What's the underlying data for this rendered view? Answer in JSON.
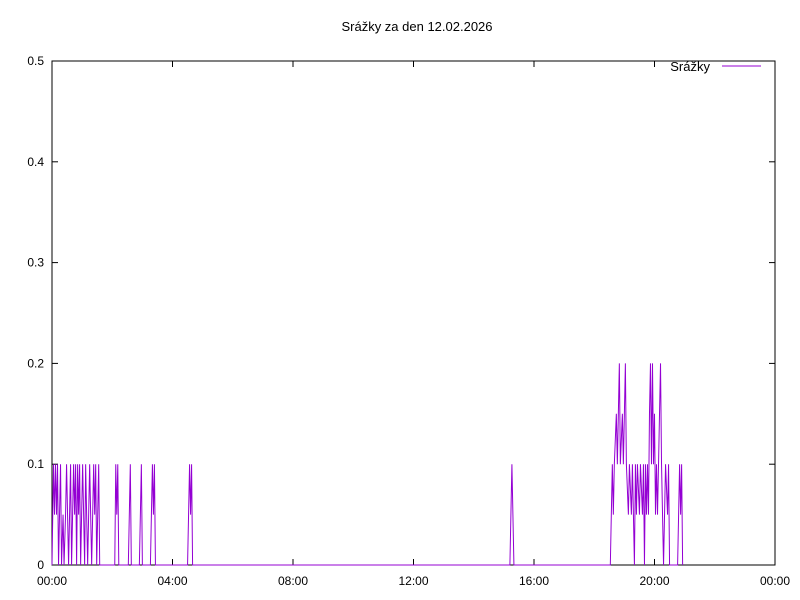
{
  "chart_data": {
    "type": "line",
    "title": "Srážky za den 12.02.2026",
    "xlabel": "",
    "ylabel": "",
    "xlim": [
      "00:00",
      "24:00"
    ],
    "ylim": [
      0,
      0.5
    ],
    "x_tick_labels": [
      "00:00",
      "04:00",
      "08:00",
      "12:00",
      "16:00",
      "20:00",
      "00:00"
    ],
    "y_tick_labels": [
      "0",
      "0.1",
      "0.2",
      "0.3",
      "0.4",
      "0.5"
    ],
    "legend_position": "top-right",
    "grid": false,
    "series": [
      {
        "name": "Srážky",
        "color": "#9400d3",
        "points": [
          [
            "00:00",
            0
          ],
          [
            "00:03",
            0.1
          ],
          [
            "00:05",
            0.05
          ],
          [
            "00:07",
            0.1
          ],
          [
            "00:09",
            0.05
          ],
          [
            "00:11",
            0.1
          ],
          [
            "00:13",
            0
          ],
          [
            "00:15",
            0.05
          ],
          [
            "00:17",
            0.1
          ],
          [
            "00:19",
            0
          ],
          [
            "00:22",
            0.05
          ],
          [
            "00:24",
            0
          ],
          [
            "00:27",
            0.05
          ],
          [
            "00:29",
            0.1
          ],
          [
            "00:31",
            0.05
          ],
          [
            "00:33",
            0
          ],
          [
            "00:35",
            0.05
          ],
          [
            "00:37",
            0.1
          ],
          [
            "00:39",
            0
          ],
          [
            "00:41",
            0.05
          ],
          [
            "00:43",
            0.1
          ],
          [
            "00:45",
            0.05
          ],
          [
            "00:47",
            0.1
          ],
          [
            "00:49",
            0
          ],
          [
            "00:51",
            0.1
          ],
          [
            "00:53",
            0.05
          ],
          [
            "00:55",
            0.1
          ],
          [
            "00:57",
            0
          ],
          [
            "00:59",
            0.05
          ],
          [
            "01:01",
            0.1
          ],
          [
            "01:03",
            0.05
          ],
          [
            "01:05",
            0
          ],
          [
            "01:07",
            0.1
          ],
          [
            "01:09",
            0.05
          ],
          [
            "01:11",
            0
          ],
          [
            "01:13",
            0.05
          ],
          [
            "01:15",
            0.1
          ],
          [
            "01:17",
            0.05
          ],
          [
            "01:19",
            0
          ],
          [
            "01:21",
            0.05
          ],
          [
            "01:23",
            0.1
          ],
          [
            "01:25",
            0.05
          ],
          [
            "01:27",
            0.1
          ],
          [
            "01:29",
            0
          ],
          [
            "01:31",
            0.05
          ],
          [
            "01:33",
            0.1
          ],
          [
            "01:35",
            0
          ],
          [
            "02:05",
            0
          ],
          [
            "02:07",
            0.1
          ],
          [
            "02:09",
            0.05
          ],
          [
            "02:11",
            0.1
          ],
          [
            "02:13",
            0
          ],
          [
            "02:32",
            0
          ],
          [
            "02:34",
            0.05
          ],
          [
            "02:36",
            0.1
          ],
          [
            "02:38",
            0
          ],
          [
            "02:54",
            0
          ],
          [
            "02:56",
            0.05
          ],
          [
            "02:58",
            0.1
          ],
          [
            "03:00",
            0
          ],
          [
            "03:16",
            0
          ],
          [
            "03:18",
            0.05
          ],
          [
            "03:20",
            0.1
          ],
          [
            "03:22",
            0.05
          ],
          [
            "03:24",
            0.1
          ],
          [
            "03:26",
            0
          ],
          [
            "04:30",
            0
          ],
          [
            "04:32",
            0.05
          ],
          [
            "04:34",
            0.1
          ],
          [
            "04:36",
            0.05
          ],
          [
            "04:38",
            0.1
          ],
          [
            "04:40",
            0
          ],
          [
            "15:12",
            0
          ],
          [
            "15:14",
            0.05
          ],
          [
            "15:16",
            0.1
          ],
          [
            "15:18",
            0.05
          ],
          [
            "15:20",
            0
          ],
          [
            "18:32",
            0
          ],
          [
            "18:34",
            0.05
          ],
          [
            "18:36",
            0.1
          ],
          [
            "18:38",
            0.05
          ],
          [
            "18:40",
            0.1
          ],
          [
            "18:44",
            0.15
          ],
          [
            "18:46",
            0.1
          ],
          [
            "18:48",
            0.15
          ],
          [
            "18:50",
            0.2
          ],
          [
            "18:52",
            0.1
          ],
          [
            "18:56",
            0.15
          ],
          [
            "18:58",
            0.1
          ],
          [
            "19:00",
            0.15
          ],
          [
            "19:02",
            0.2
          ],
          [
            "19:04",
            0.1
          ],
          [
            "19:08",
            0.05
          ],
          [
            "19:10",
            0.1
          ],
          [
            "19:14",
            0.05
          ],
          [
            "19:16",
            0.1
          ],
          [
            "19:20",
            0
          ],
          [
            "19:22",
            0.1
          ],
          [
            "19:24",
            0.05
          ],
          [
            "19:26",
            0.1
          ],
          [
            "19:30",
            0.05
          ],
          [
            "19:32",
            0.1
          ],
          [
            "19:36",
            0.05
          ],
          [
            "19:38",
            0.1
          ],
          [
            "19:40",
            0
          ],
          [
            "19:42",
            0.1
          ],
          [
            "19:44",
            0.05
          ],
          [
            "19:46",
            0.1
          ],
          [
            "19:48",
            0.05
          ],
          [
            "19:50",
            0.15
          ],
          [
            "19:52",
            0.2
          ],
          [
            "19:54",
            0.1
          ],
          [
            "19:56",
            0.2
          ],
          [
            "19:58",
            0.1
          ],
          [
            "20:00",
            0.15
          ],
          [
            "20:02",
            0.05
          ],
          [
            "20:04",
            0.1
          ],
          [
            "20:06",
            0.05
          ],
          [
            "20:08",
            0.1
          ],
          [
            "20:10",
            0.15
          ],
          [
            "20:12",
            0.2
          ],
          [
            "20:14",
            0.1
          ],
          [
            "20:16",
            0.05
          ],
          [
            "20:18",
            0
          ],
          [
            "20:20",
            0.05
          ],
          [
            "20:22",
            0.1
          ],
          [
            "20:26",
            0.05
          ],
          [
            "20:28",
            0.1
          ],
          [
            "20:30",
            0
          ],
          [
            "20:46",
            0
          ],
          [
            "20:48",
            0.05
          ],
          [
            "20:50",
            0.1
          ],
          [
            "20:52",
            0.05
          ],
          [
            "20:54",
            0.1
          ],
          [
            "20:56",
            0
          ]
        ]
      }
    ]
  }
}
